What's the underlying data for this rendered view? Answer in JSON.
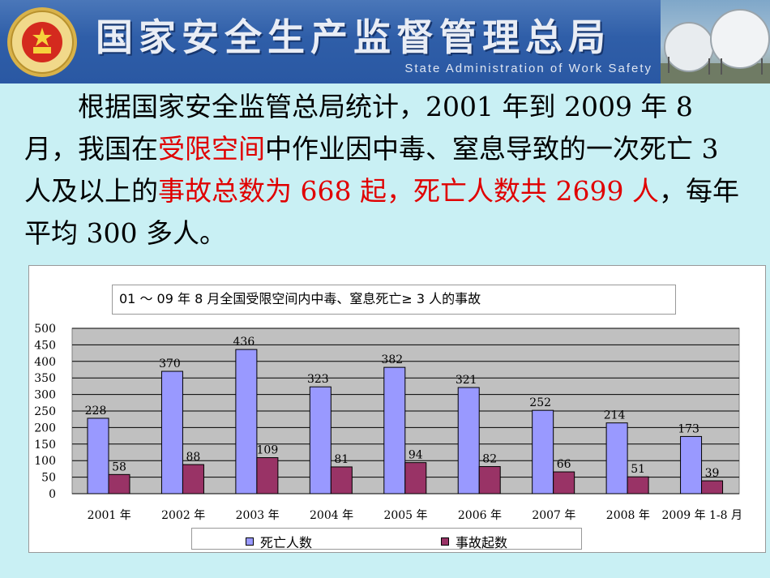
{
  "header": {
    "title_cn": "国家安全生产监督管理总局",
    "title_en": "State Administration of Work Safety"
  },
  "paragraph": {
    "t1": "根据国家安全监管总局统计，2001 年到 2009 年 8 月，我国在",
    "r1": "受限空间",
    "t2": "中作业因中毒、窒息导致的一次死亡 3 人及以上的",
    "r2": "事故总数为 668 起，死亡人数共 2699 人",
    "t3": "，每年平均 300 多人。"
  },
  "colors": {
    "deaths": "#9999ff",
    "accidents": "#993366",
    "plot_bg": "#c0c0c0"
  },
  "chart_data": {
    "type": "bar",
    "title": "01 ～ 09 年 8 月全国受限空间内中毒、窒息死亡≥ 3 人的事故",
    "categories": [
      "2001 年",
      "2002 年",
      "2003 年",
      "2004 年",
      "2005 年",
      "2006 年",
      "2007 年",
      "2008 年",
      "2009 年 1-8 月"
    ],
    "series": [
      {
        "name": "死亡人数",
        "values": [
          228,
          370,
          436,
          323,
          382,
          321,
          252,
          214,
          173
        ]
      },
      {
        "name": "事故起数",
        "values": [
          58,
          88,
          109,
          81,
          94,
          82,
          66,
          51,
          39
        ]
      }
    ],
    "ylim": [
      0,
      500
    ],
    "yticks": [
      0,
      50,
      100,
      150,
      200,
      250,
      300,
      350,
      400,
      450,
      500
    ],
    "grid": true,
    "legend": "bottom"
  }
}
